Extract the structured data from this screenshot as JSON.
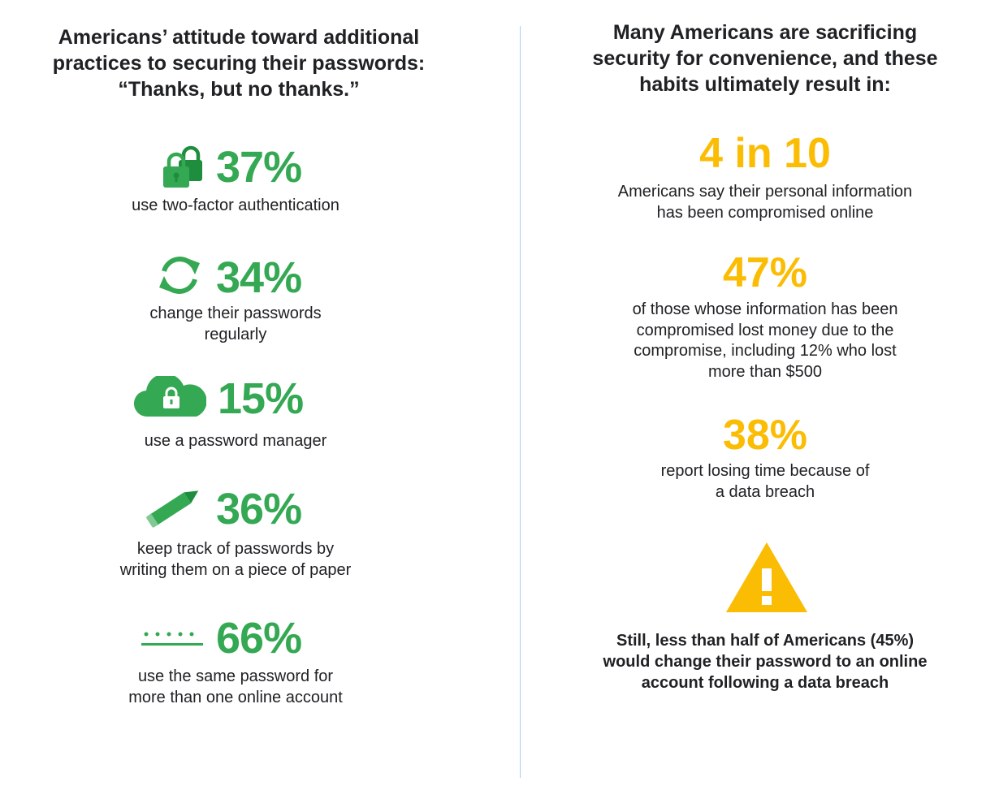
{
  "left": {
    "title_lines": [
      "Americans’ attitude toward additional",
      "practices to securing their passwords:",
      "“Thanks, but no thanks.”"
    ],
    "stats": [
      {
        "icon": "two-locks-icon",
        "value": "37%",
        "lines": [
          "use two-factor authentication"
        ]
      },
      {
        "icon": "refresh-icon",
        "value": "34%",
        "lines": [
          "change their passwords",
          "regularly"
        ]
      },
      {
        "icon": "cloud-lock-icon",
        "value": "15%",
        "lines": [
          "use a password manager"
        ]
      },
      {
        "icon": "pencil-icon",
        "value": "36%",
        "lines": [
          "keep track of passwords by",
          "writing them on a piece of paper"
        ]
      },
      {
        "icon": "password-dots-icon",
        "value": "66%",
        "lines": [
          "use the same password for",
          "more than one online account"
        ]
      }
    ]
  },
  "right": {
    "title_lines": [
      "Many Americans are sacrificing",
      "security for convenience, and these",
      "habits ultimately result in:"
    ],
    "stats": [
      {
        "value": "4 in 10",
        "lines": [
          "Americans say their personal information",
          "has been compromised online"
        ]
      },
      {
        "value": "47%",
        "lines": [
          "of those whose information has been",
          "compromised lost money due to the",
          "compromise, including 12% who lost",
          "more than $500"
        ]
      },
      {
        "value": "38%",
        "lines": [
          "report losing time because of",
          "a data breach"
        ]
      }
    ],
    "warning_icon": "warning-icon",
    "warning_lines": [
      "Still, less than half of Americans (45%)",
      "would change their password to an online",
      "account following a data breach"
    ]
  },
  "colors": {
    "green": "#34a853",
    "yellow": "#fbbc04",
    "divider": "#aecbfa",
    "text": "#202124"
  }
}
